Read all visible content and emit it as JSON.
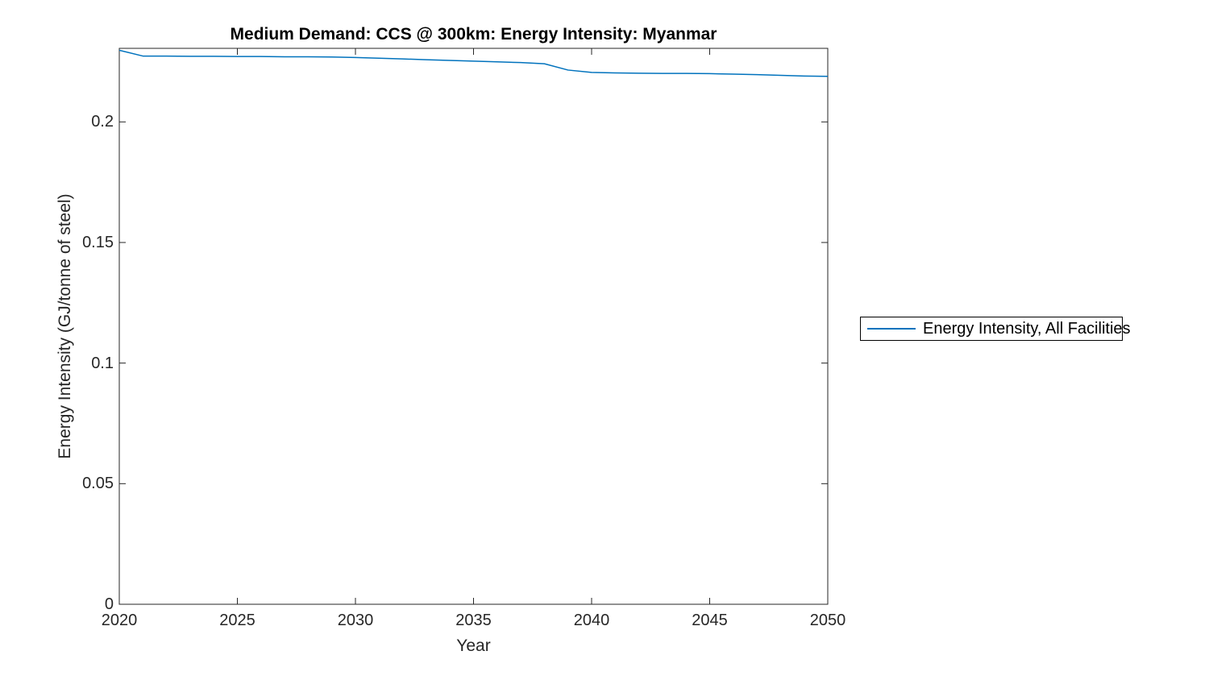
{
  "chart_data": {
    "type": "line",
    "title": "Medium Demand: CCS @ 300km: Energy Intensity: Myanmar",
    "xlabel": "Year",
    "ylabel": "Energy Intensity (GJ/tonne of steel)",
    "x": [
      2020,
      2021,
      2022,
      2023,
      2024,
      2025,
      2026,
      2027,
      2028,
      2029,
      2030,
      2031,
      2032,
      2033,
      2034,
      2035,
      2036,
      2037,
      2038,
      2039,
      2040,
      2041,
      2042,
      2043,
      2044,
      2045,
      2046,
      2047,
      2048,
      2049,
      2050
    ],
    "series": [
      {
        "name": "Energy Intensity, All Facilities",
        "color": "#0072BD",
        "values": [
          0.2297,
          0.2273,
          0.2273,
          0.2272,
          0.2272,
          0.2271,
          0.2271,
          0.227,
          0.227,
          0.2269,
          0.2267,
          0.2264,
          0.2261,
          0.2258,
          0.2255,
          0.2252,
          0.2249,
          0.2246,
          0.2241,
          0.2215,
          0.2205,
          0.2203,
          0.2202,
          0.2201,
          0.2201,
          0.22,
          0.2198,
          0.2196,
          0.2193,
          0.219,
          0.2189
        ]
      }
    ],
    "xlim": [
      2020,
      2050
    ],
    "ylim": [
      0,
      0.2305
    ],
    "xticks": {
      "values": [
        2020,
        2025,
        2030,
        2035,
        2040,
        2045,
        2050
      ],
      "labels": [
        "2020",
        "2025",
        "2030",
        "2035",
        "2040",
        "2045",
        "2050"
      ]
    },
    "yticks": {
      "values": [
        0,
        0.05,
        0.1,
        0.15,
        0.2
      ],
      "labels": [
        "0",
        "0.05",
        "0.1",
        "0.15",
        "0.2"
      ]
    },
    "grid": false,
    "legend": {
      "position": "outside-right",
      "entries": [
        "Energy Intensity, All Facilities"
      ]
    },
    "axis_color": "#262626",
    "background": "#ffffff"
  }
}
